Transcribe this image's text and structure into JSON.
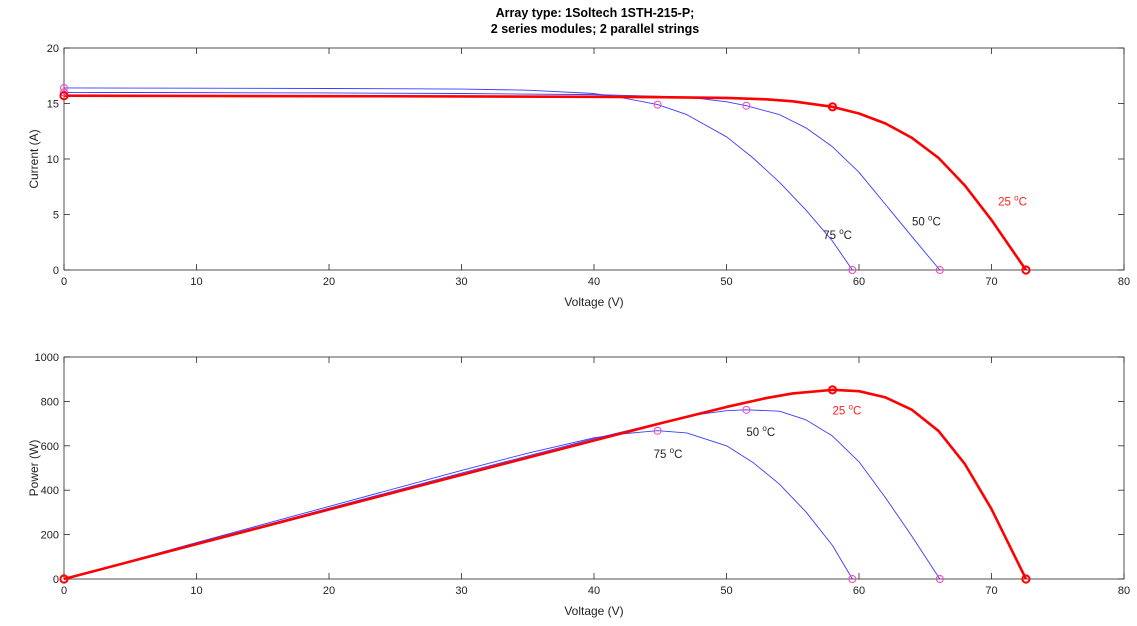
{
  "title": {
    "line1": "Array type: 1Soltech 1STH-215-P;",
    "line2": "2 series modules; 2 parallel strings"
  },
  "colors": {
    "t25": "#ff0000",
    "t50": "#3a3aff",
    "t75": "#3a3aff",
    "mpp_hollow": "#ff3fbf",
    "axis": "#262626",
    "label_25": "#ff2020",
    "label_other": "#222222"
  },
  "chart_data": [
    {
      "type": "line",
      "id": "iv",
      "xlabel": "Voltage (V)",
      "ylabel": "Current (A)",
      "xlim": [
        0,
        80
      ],
      "ylim": [
        0,
        20
      ],
      "xticks": [
        0,
        10,
        20,
        30,
        40,
        50,
        60,
        70,
        80
      ],
      "yticks": [
        0,
        5,
        10,
        15,
        20
      ],
      "grid": false,
      "series": [
        {
          "name": "25 °C",
          "label_main": "25 ",
          "label_sup": "o",
          "label_tail": "C",
          "label_pos": [
            70.5,
            5.8
          ],
          "isc": 15.7,
          "voc": 72.6,
          "vmp": 58.0,
          "imp": 14.7,
          "x": [
            0,
            10,
            20,
            30,
            40,
            45,
            50,
            53,
            55,
            58,
            60,
            62,
            64,
            66,
            68,
            70,
            72.6
          ],
          "y": [
            15.7,
            15.68,
            15.66,
            15.64,
            15.6,
            15.57,
            15.5,
            15.38,
            15.2,
            14.7,
            14.1,
            13.2,
            11.9,
            10.1,
            7.6,
            4.5,
            0
          ]
        },
        {
          "name": "50 °C",
          "label_main": "50 ",
          "label_sup": "o",
          "label_tail": "C",
          "label_pos": [
            64.0,
            4.0
          ],
          "isc": 16.0,
          "voc": 66.1,
          "vmp": 51.5,
          "imp": 14.8,
          "x": [
            0,
            10,
            20,
            30,
            40,
            45,
            48,
            50,
            51.5,
            54,
            56,
            58,
            60,
            62,
            64,
            66.1
          ],
          "y": [
            16.0,
            15.98,
            15.95,
            15.9,
            15.8,
            15.65,
            15.45,
            15.15,
            14.8,
            14.0,
            12.8,
            11.1,
            8.8,
            5.9,
            3.0,
            0
          ]
        },
        {
          "name": "75 °C",
          "label_main": "75 ",
          "label_sup": "o",
          "label_tail": "C",
          "label_pos": [
            57.3,
            2.8
          ],
          "isc": 16.4,
          "voc": 59.5,
          "vmp": 44.8,
          "imp": 14.9,
          "x": [
            0,
            10,
            20,
            30,
            35,
            40,
            42,
            44.8,
            47,
            50,
            52,
            54,
            56,
            58,
            59.5
          ],
          "y": [
            16.4,
            16.38,
            16.35,
            16.3,
            16.2,
            15.9,
            15.55,
            14.9,
            14.0,
            12.0,
            10.1,
            7.9,
            5.4,
            2.6,
            0
          ]
        }
      ]
    },
    {
      "type": "line",
      "id": "pv",
      "xlabel": "Voltage (V)",
      "ylabel": "Power (W)",
      "xlim": [
        0,
        80
      ],
      "ylim": [
        0,
        1000
      ],
      "xticks": [
        0,
        10,
        20,
        30,
        40,
        50,
        60,
        70,
        80
      ],
      "yticks": [
        0,
        200,
        400,
        600,
        800,
        1000
      ],
      "grid": false,
      "series": [
        {
          "name": "25 °C",
          "label_main": "25 ",
          "label_sup": "o",
          "label_tail": "C",
          "label_pos": [
            58.0,
            740
          ],
          "pmp": 852,
          "vmp": 58.0,
          "voc": 72.6,
          "x": [
            0,
            10,
            20,
            30,
            40,
            45,
            50,
            53,
            55,
            58,
            60,
            62,
            64,
            66,
            68,
            70,
            72.6
          ],
          "y": [
            0,
            157,
            313,
            469,
            624,
            701,
            775,
            815,
            836,
            852,
            846,
            818,
            762,
            667,
            517,
            315,
            0
          ]
        },
        {
          "name": "50 °C",
          "label_main": "50 ",
          "label_sup": "o",
          "label_tail": "C",
          "label_pos": [
            51.5,
            645
          ],
          "pmp": 762,
          "vmp": 51.5,
          "voc": 66.1,
          "x": [
            0,
            10,
            20,
            30,
            40,
            45,
            48,
            50,
            51.5,
            54,
            56,
            58,
            60,
            62,
            64,
            66.1
          ],
          "y": [
            0,
            160,
            319,
            477,
            632,
            704,
            742,
            758,
            762,
            756,
            717,
            644,
            528,
            366,
            192,
            0
          ]
        },
        {
          "name": "75 °C",
          "label_main": "75 ",
          "label_sup": "o",
          "label_tail": "C",
          "label_pos": [
            44.5,
            545
          ],
          "pmp": 668,
          "vmp": 44.8,
          "voc": 59.5,
          "x": [
            0,
            10,
            20,
            30,
            35,
            40,
            42,
            44.8,
            47,
            50,
            52,
            54,
            56,
            58,
            59.5
          ],
          "y": [
            0,
            164,
            327,
            489,
            567,
            636,
            653,
            668,
            658,
            600,
            525,
            427,
            302,
            151,
            0
          ]
        }
      ]
    }
  ]
}
